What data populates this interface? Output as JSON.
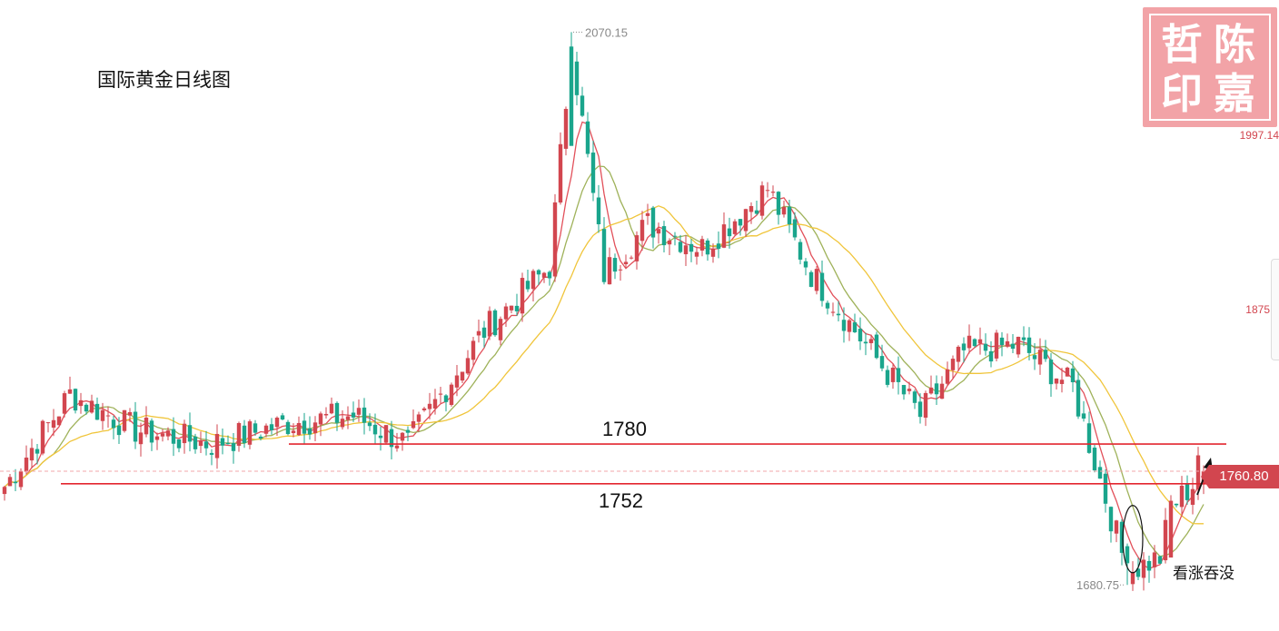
{
  "title": "国际黄金日线图",
  "seal": {
    "chars": [
      "哲",
      "陈",
      "印",
      "嘉"
    ]
  },
  "axis": {
    "label_top": "1997.14",
    "label_mid": "1875.4"
  },
  "last_price": "1760.80",
  "annotations": {
    "high_label": "2070.15",
    "low_label": "1680.75",
    "pattern_label": "看涨吞没",
    "level_1780": "1780",
    "level_1752": "1752"
  },
  "colors": {
    "up": "#d2464f",
    "down": "#1aa58c",
    "ma5": "#e2505a",
    "ma10": "#9fb25a",
    "ma20": "#f0c53b",
    "level": "#e3262f"
  },
  "chart_data": {
    "type": "candlestick",
    "title": "国际黄金日线图",
    "ylim": [
      1670,
      2080
    ],
    "high": 2070.15,
    "low": 1680.75,
    "last": 1760.8,
    "horizontal_levels": [
      1780,
      1752
    ],
    "moving_averages": [
      "short",
      "medium",
      "long"
    ],
    "anchors": [
      [
        0,
        1750
      ],
      [
        12,
        1815
      ],
      [
        24,
        1790
      ],
      [
        38,
        1780
      ],
      [
        52,
        1795
      ],
      [
        64,
        1800
      ],
      [
        74,
        1780
      ],
      [
        88,
        1860
      ],
      [
        100,
        1905
      ],
      [
        104,
        2060
      ],
      [
        110,
        1900
      ],
      [
        118,
        1935
      ],
      [
        128,
        1918
      ],
      [
        140,
        1960
      ],
      [
        148,
        1900
      ],
      [
        156,
        1860
      ],
      [
        168,
        1800
      ],
      [
        176,
        1845
      ],
      [
        186,
        1850
      ],
      [
        196,
        1820
      ],
      [
        206,
        1690
      ],
      [
        212,
        1700
      ],
      [
        214,
        1735
      ],
      [
        220,
        1760
      ]
    ]
  }
}
